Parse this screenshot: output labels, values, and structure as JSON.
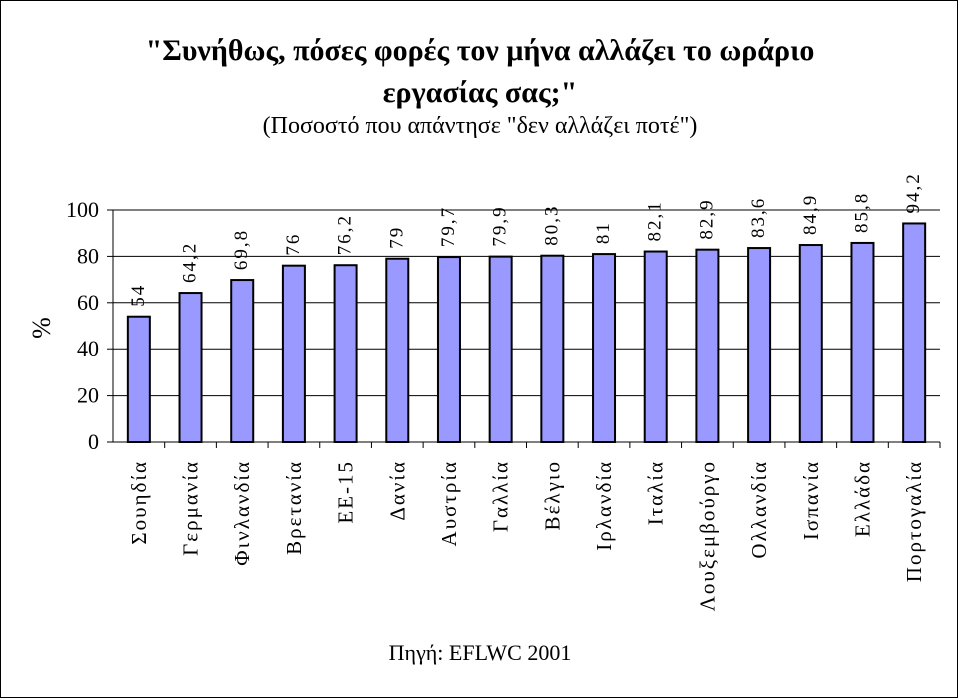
{
  "chart_data": {
    "type": "bar",
    "title": "\"Συνήθως, πόσες φορές τον μήνα αλλάζει το ωράριο εργασίας σας;\"",
    "subtitle": "(Ποσοστό που απάντησε \"δεν αλλάζει ποτέ\")",
    "ylabel": "%",
    "xlabel": "",
    "ylim": [
      0,
      100
    ],
    "yticks": [
      "0",
      "20",
      "40",
      "60",
      "80",
      "100"
    ],
    "categories": [
      "Σουηδία",
      "Γερμανία",
      "Φινλανδία",
      "Βρετανία",
      "ΕΕ-15",
      "Δανία",
      "Αυστρία",
      "Γαλλία",
      "Βέλγιο",
      "Ιρλανδία",
      "Ιταλία",
      "Λουξεμβούργο",
      "Ολλανδία",
      "Ισπανία",
      "Ελλάδα",
      "Πορτογαλία"
    ],
    "values": [
      54,
      64.2,
      69.8,
      76,
      76.2,
      79,
      79.7,
      79.9,
      80.3,
      81,
      82.1,
      82.9,
      83.6,
      84.9,
      85.8,
      94.2
    ],
    "value_labels": [
      "54",
      "64,2",
      "69,8",
      "76",
      "76,2",
      "79",
      "79,7",
      "79,9",
      "80,3",
      "81",
      "82,1",
      "82,9",
      "83,6",
      "84,9",
      "85,8",
      "94,2"
    ],
    "bar_color": "#9999ff",
    "grid": true,
    "source": "Πηγή: EFLWC 2001"
  }
}
